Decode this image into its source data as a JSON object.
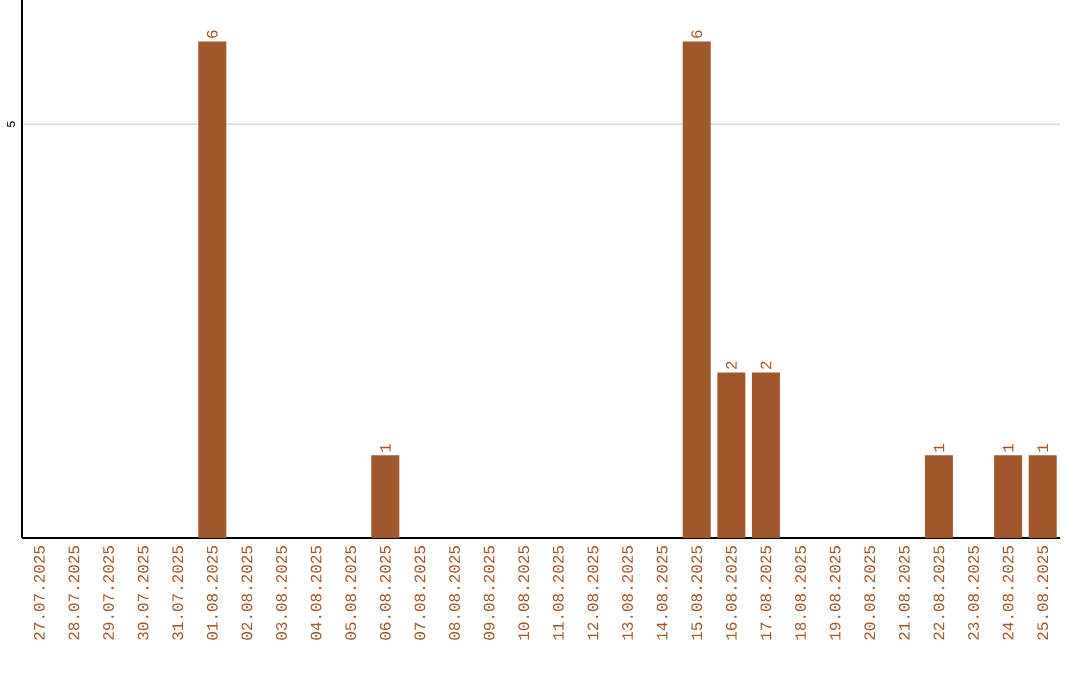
{
  "chart_data": {
    "type": "bar",
    "categories": [
      "27.07.2025",
      "28.07.2025",
      "29.07.2025",
      "30.07.2025",
      "31.07.2025",
      "01.08.2025",
      "02.08.2025",
      "03.08.2025",
      "04.08.2025",
      "05.08.2025",
      "06.08.2025",
      "07.08.2025",
      "08.08.2025",
      "09.08.2025",
      "10.08.2025",
      "11.08.2025",
      "12.08.2025",
      "13.08.2025",
      "14.08.2025",
      "15.08.2025",
      "16.08.2025",
      "17.08.2025",
      "18.08.2025",
      "19.08.2025",
      "20.08.2025",
      "21.08.2025",
      "22.08.2025",
      "23.08.2025",
      "24.08.2025",
      "25.08.2025"
    ],
    "values": [
      0,
      0,
      0,
      0,
      0,
      6,
      0,
      0,
      0,
      0,
      1,
      0,
      0,
      0,
      0,
      0,
      0,
      0,
      0,
      6,
      2,
      2,
      0,
      0,
      0,
      0,
      1,
      0,
      1,
      1
    ],
    "value_labels": [
      null,
      null,
      null,
      null,
      null,
      "6",
      null,
      null,
      null,
      null,
      "1",
      null,
      null,
      null,
      null,
      null,
      null,
      null,
      null,
      "6",
      "2",
      "2",
      null,
      null,
      null,
      null,
      "1",
      null,
      "1",
      "1"
    ],
    "color": "#a0572a",
    "ylim": [
      0,
      6.5
    ],
    "yticks": [
      5
    ],
    "grid": "y"
  }
}
